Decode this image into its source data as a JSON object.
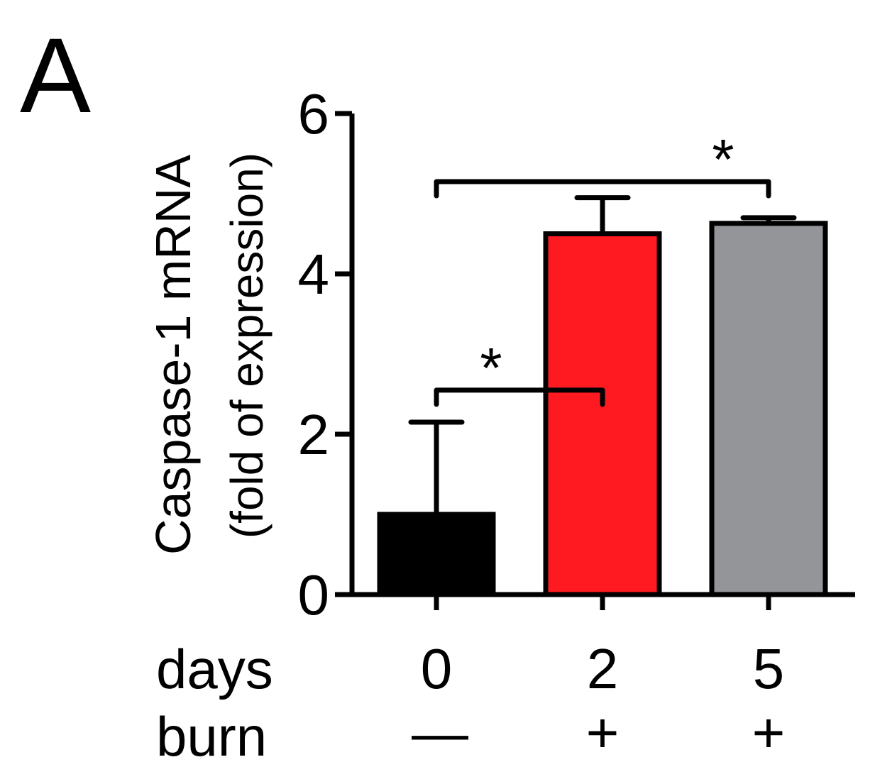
{
  "panel_label": "A",
  "chart_data": {
    "type": "bar",
    "title": "",
    "ylabel_line1": "Caspase-1 mRNA",
    "ylabel_line2": "(fold of expression)",
    "ylim": [
      0,
      6
    ],
    "yticks": [
      "0",
      "2",
      "4",
      "6"
    ],
    "yticks_values": [
      0,
      2,
      4,
      6
    ],
    "categories": [
      "0",
      "2",
      "5"
    ],
    "values": [
      1.0,
      4.5,
      4.63
    ],
    "errors": [
      1.15,
      0.45,
      0.07
    ],
    "colors": [
      "#000000",
      "#ff1a22",
      "#939598"
    ],
    "row_labels": {
      "days_label": "days",
      "burn_label": "burn",
      "days": [
        "0",
        "2",
        "5"
      ],
      "burn": [
        "—",
        "+",
        "+"
      ]
    },
    "significance": [
      {
        "from": 0,
        "to": 1,
        "y": 2.55,
        "label": "*"
      },
      {
        "from": 0,
        "to": 2,
        "y": 5.15,
        "label": "*"
      }
    ]
  }
}
